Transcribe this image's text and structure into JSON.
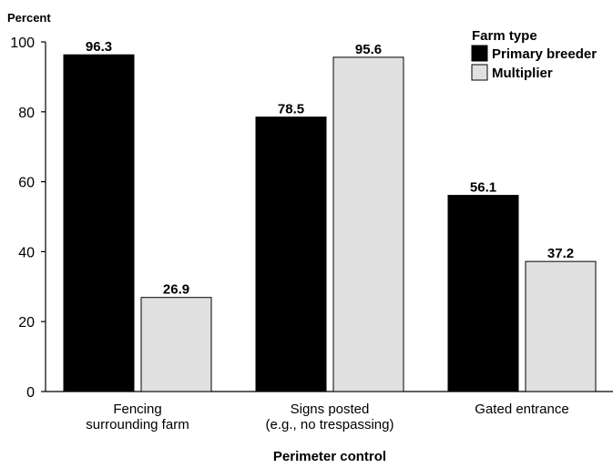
{
  "chart_data": {
    "type": "bar",
    "title": "",
    "ylabel": "Percent",
    "xlabel": "Perimeter control",
    "ylim": [
      0,
      100
    ],
    "yticks": [
      0,
      20,
      40,
      60,
      80,
      100
    ],
    "categories": [
      [
        "Fencing",
        "surrounding farm"
      ],
      [
        "Signs posted",
        "(e.g., no trespassing)"
      ],
      [
        "Gated entrance"
      ]
    ],
    "legend_title": "Farm type",
    "legend_position": "top-right",
    "series": [
      {
        "name": "Primary breeder",
        "color": "#000000",
        "values": [
          96.3,
          78.5,
          56.1
        ]
      },
      {
        "name": "Multiplier",
        "color": "#e0e0e0",
        "values": [
          26.9,
          95.6,
          37.2
        ]
      }
    ],
    "grid": false
  }
}
